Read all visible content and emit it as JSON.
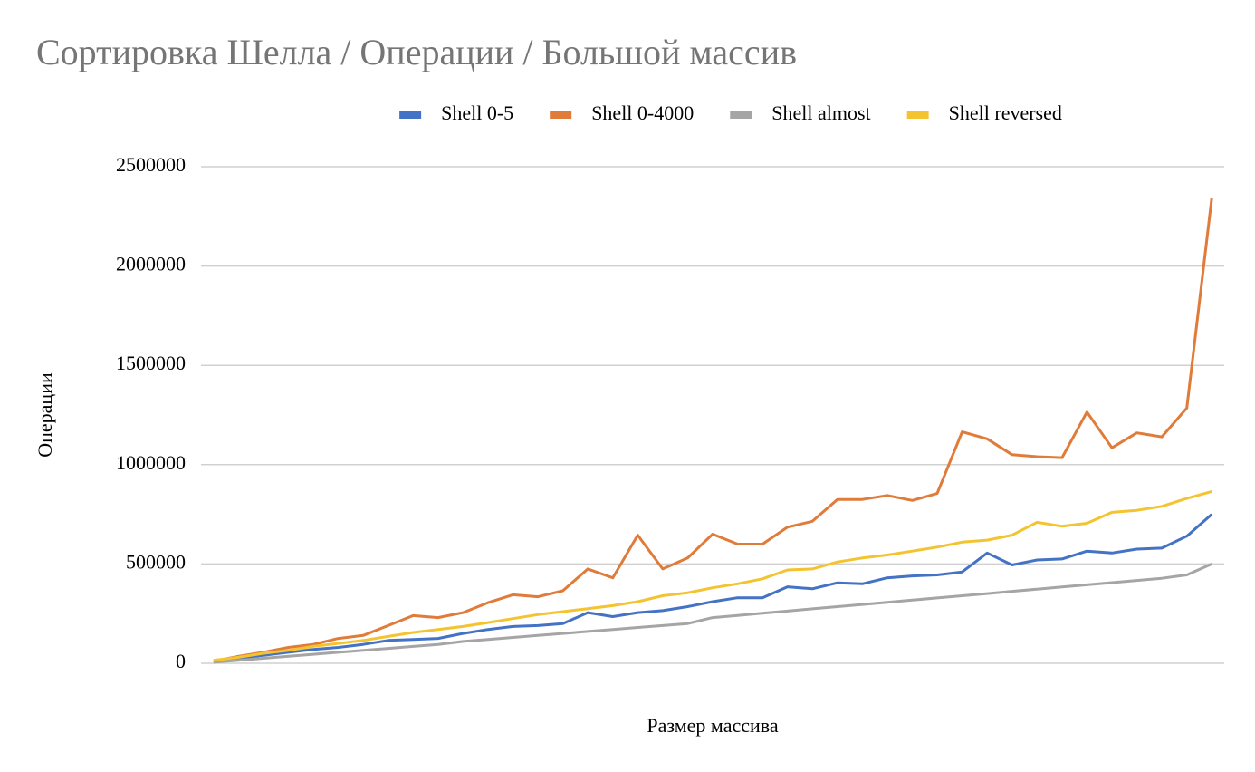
{
  "chart_data": {
    "type": "line",
    "title": "Сортировка Шелла / Операции / Большой массив",
    "x_label": "Размер массива",
    "y_label": "Операции",
    "categories": [
      null,
      null,
      null,
      null,
      null,
      null,
      null,
      null,
      null,
      null,
      null,
      null,
      null,
      null,
      null,
      null,
      null,
      null,
      null,
      null,
      null,
      null,
      null,
      null,
      null,
      null,
      null,
      null,
      null,
      null,
      null,
      null,
      null,
      null,
      null,
      null,
      null,
      null,
      null,
      null,
      null
    ],
    "series": [
      {
        "name": "Shell 0-5",
        "color": "#4472c4",
        "values": [
          10000,
          25000,
          40000,
          55000,
          70000,
          80000,
          95000,
          115000,
          120000,
          125000,
          150000,
          170000,
          185000,
          190000,
          200000,
          255000,
          235000,
          255000,
          265000,
          285000,
          310000,
          330000,
          330000,
          385000,
          375000,
          405000,
          400000,
          430000,
          440000,
          445000,
          460000,
          555000,
          495000,
          520000,
          525000,
          565000,
          555000,
          575000,
          580000,
          640000,
          750000
        ]
      },
      {
        "name": "Shell 0-4000",
        "color": "#e07b39",
        "values": [
          10000,
          35000,
          55000,
          80000,
          95000,
          125000,
          140000,
          190000,
          240000,
          230000,
          255000,
          305000,
          345000,
          335000,
          365000,
          475000,
          430000,
          645000,
          475000,
          530000,
          650000,
          600000,
          600000,
          685000,
          715000,
          825000,
          825000,
          845000,
          820000,
          855000,
          1165000,
          1130000,
          1050000,
          1040000,
          1035000,
          1265000,
          1085000,
          1160000,
          1140000,
          1285000,
          2340000
        ]
      },
      {
        "name": "Shell almost",
        "color": "#a5a5a5",
        "values": [
          5000,
          15000,
          25000,
          35000,
          45000,
          55000,
          65000,
          75000,
          85000,
          95000,
          110000,
          120000,
          130000,
          140000,
          150000,
          160000,
          170000,
          180000,
          190000,
          200000,
          230000,
          241000,
          252000,
          263000,
          274000,
          285000,
          296000,
          307000,
          318000,
          329000,
          340000,
          351000,
          362000,
          373000,
          384000,
          395000,
          406000,
          417000,
          428000,
          445000,
          500000
        ]
      },
      {
        "name": "Shell reversed",
        "color": "#f4c430",
        "values": [
          15000,
          30000,
          50000,
          65000,
          85000,
          100000,
          115000,
          135000,
          155000,
          170000,
          185000,
          205000,
          225000,
          245000,
          260000,
          275000,
          290000,
          310000,
          340000,
          355000,
          380000,
          400000,
          425000,
          470000,
          475000,
          510000,
          530000,
          545000,
          565000,
          585000,
          610000,
          620000,
          645000,
          710000,
          690000,
          705000,
          760000,
          770000,
          790000,
          830000,
          865000
        ]
      }
    ],
    "ylim": [
      0,
      2500000
    ],
    "yticks": [
      0,
      500000,
      1000000,
      1500000,
      2000000,
      2500000
    ],
    "grid": true,
    "legend": "top"
  }
}
